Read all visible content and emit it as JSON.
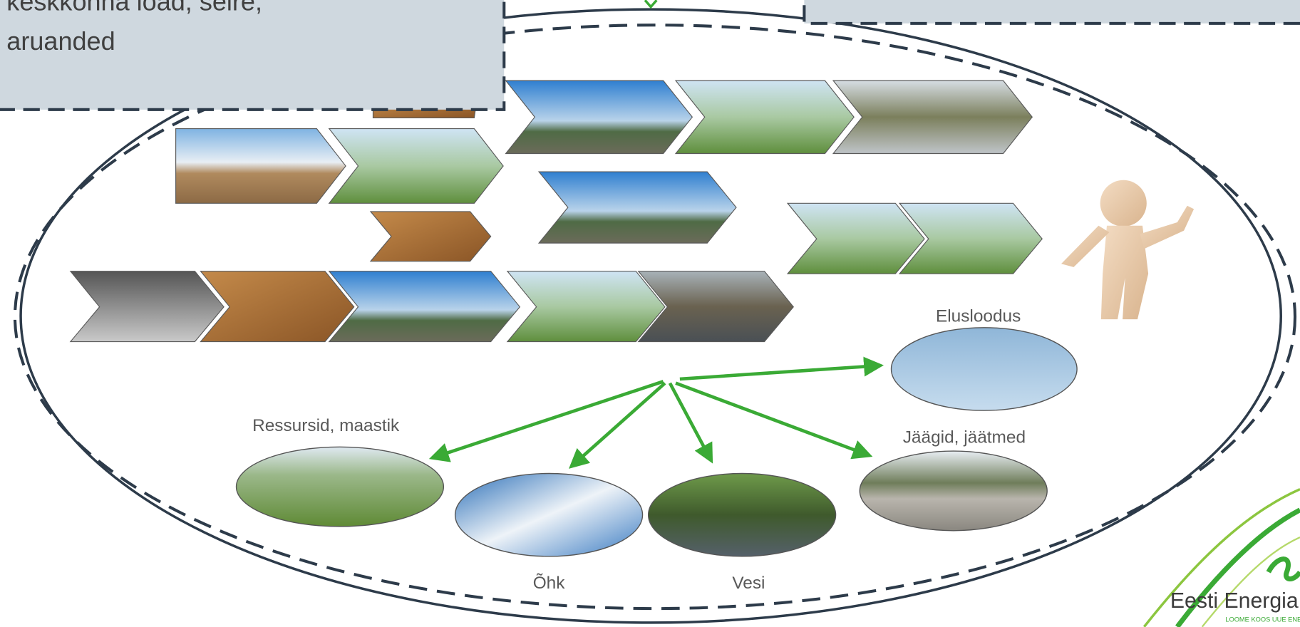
{
  "top_box": {
    "lines": [
      "keskkonna load, seire,",
      "aruanded"
    ]
  },
  "impacts": {
    "wildlife": "Elusloodus",
    "resources": "Ressursid, maastik",
    "residues": "Jäägid, jäätmed",
    "air": "Õhk",
    "water": "Vesi"
  },
  "logo": {
    "name": "Eesti Energia",
    "slogan": "LOOME KOOS UUE ENERGIA"
  }
}
